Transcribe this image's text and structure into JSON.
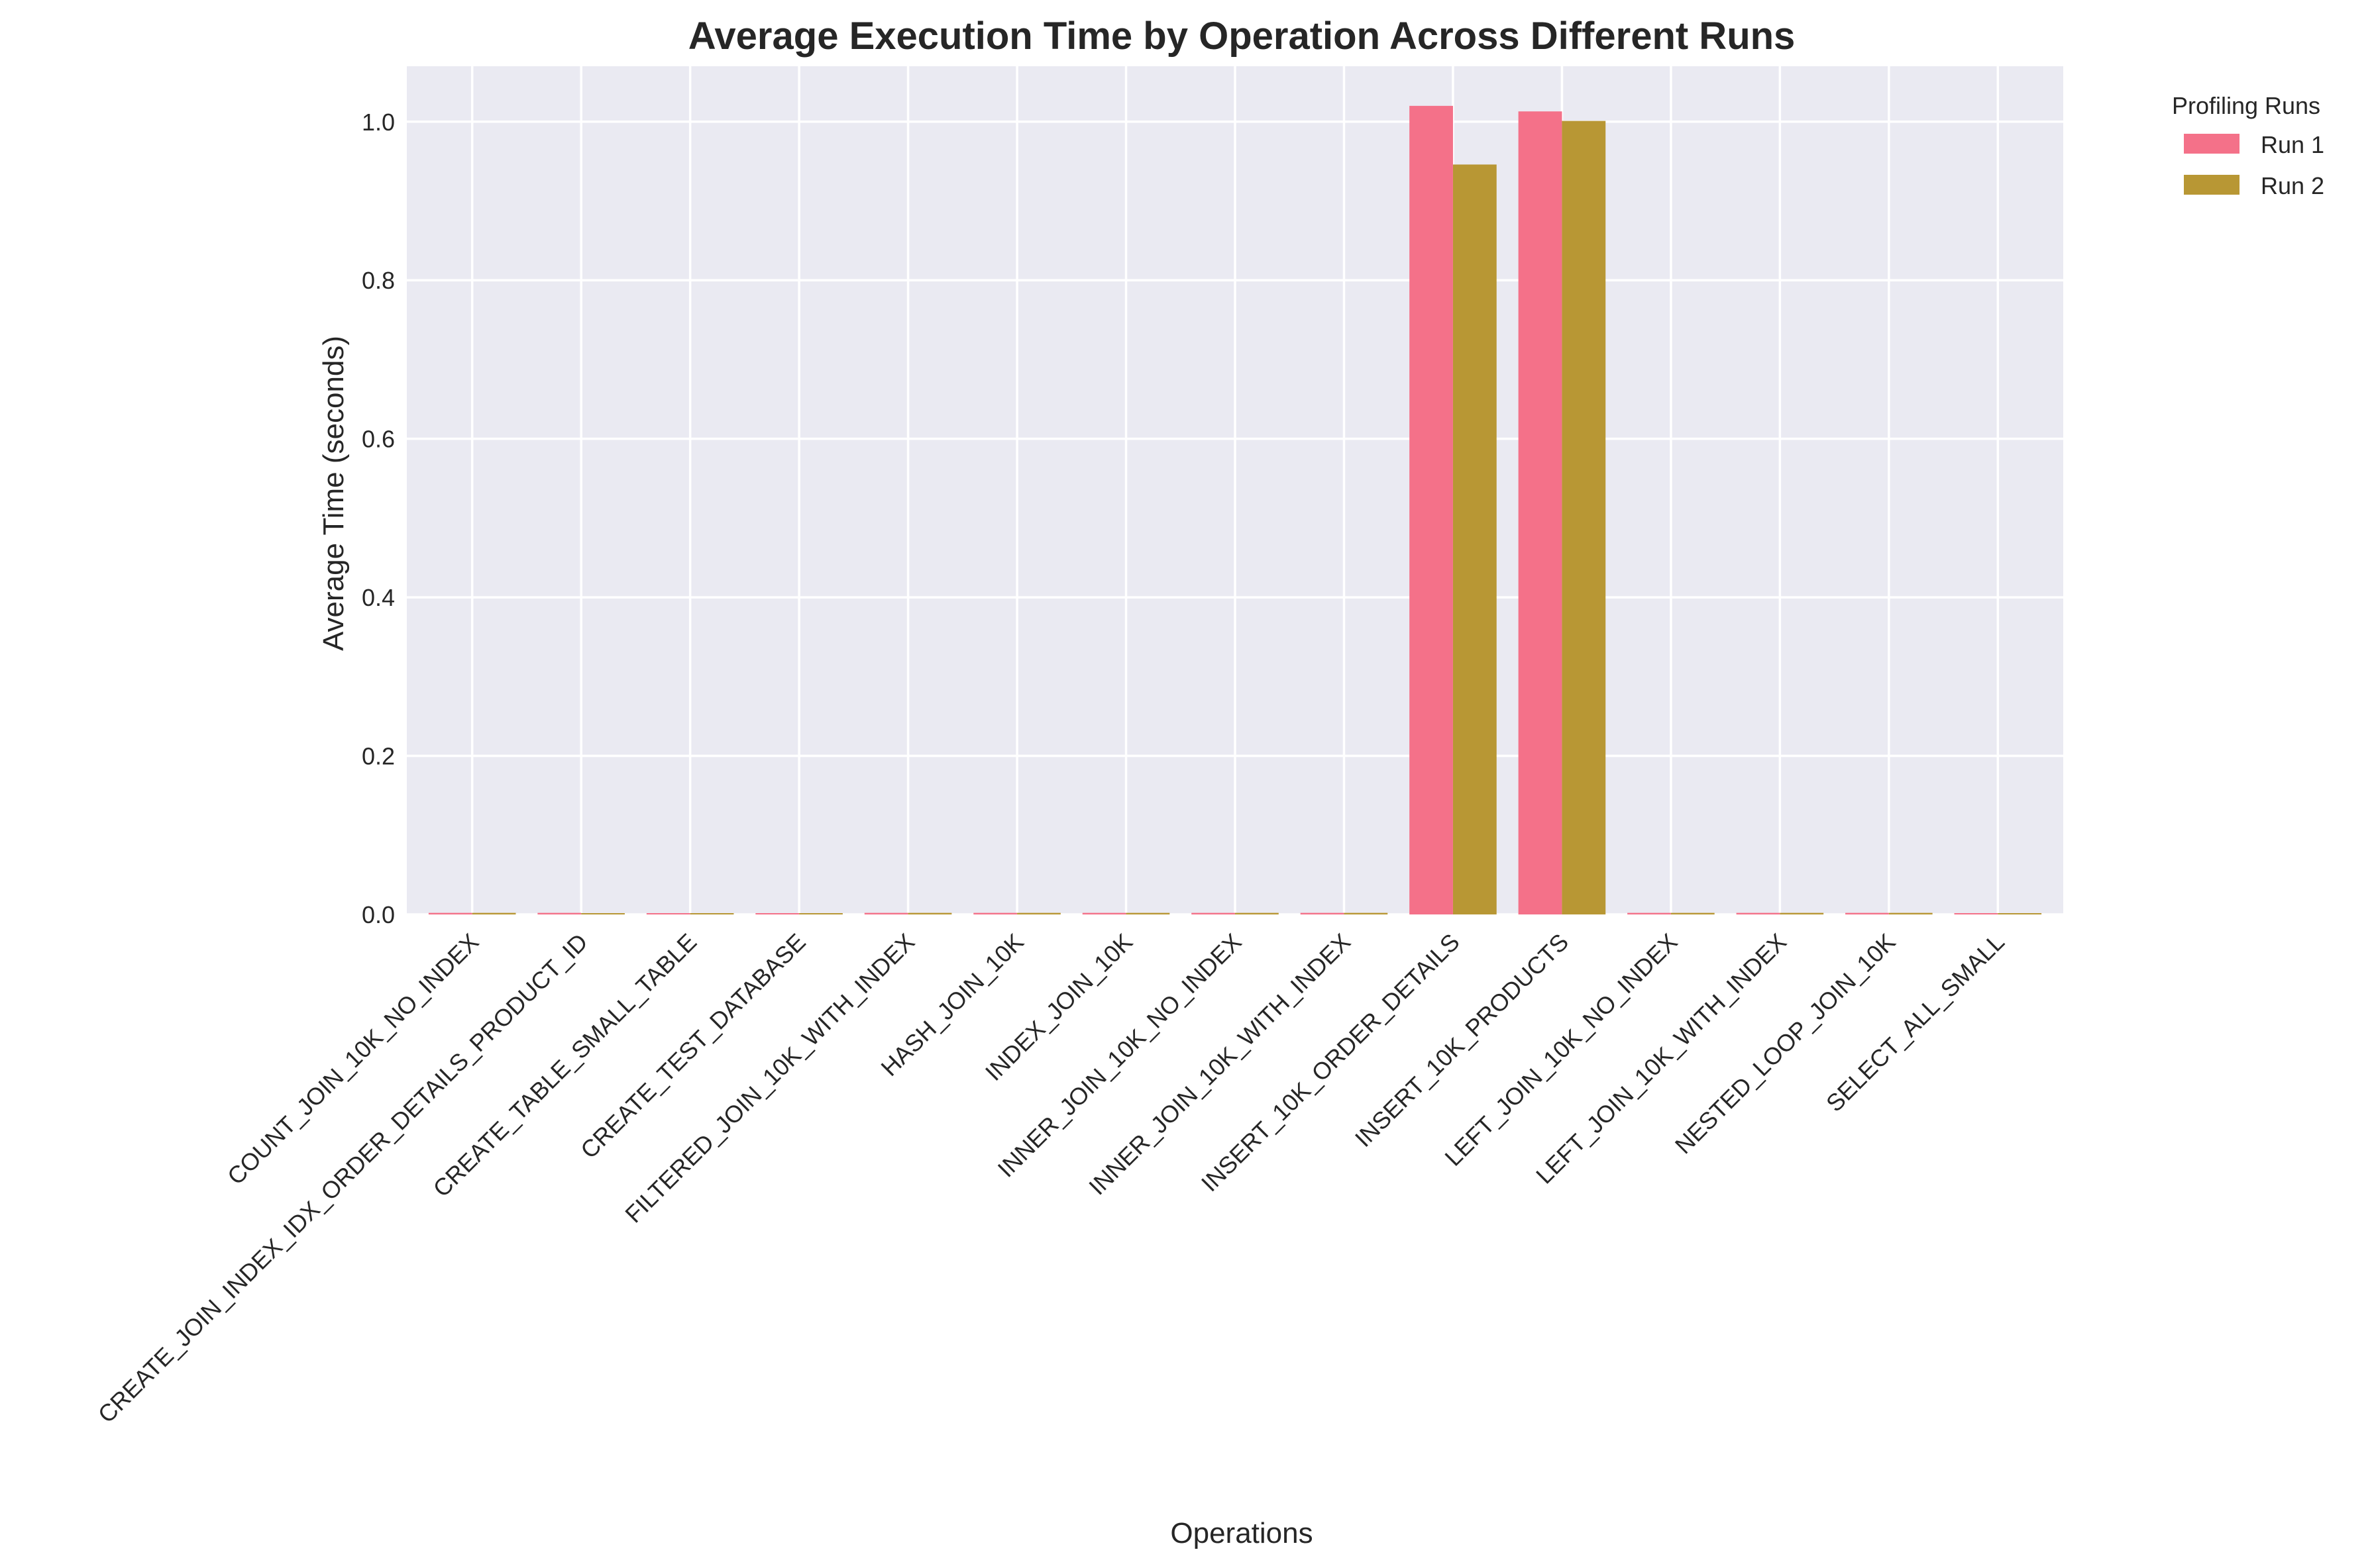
{
  "chart_data": {
    "type": "bar",
    "title": "Average Execution Time by Operation Across Different Runs",
    "xlabel": "Operations",
    "ylabel": "Average Time (seconds)",
    "ylim": [
      0,
      1.07
    ],
    "yticks": [
      0.0,
      0.2,
      0.4,
      0.6,
      0.8,
      1.0
    ],
    "ytick_labels": [
      "0.0",
      "0.2",
      "0.4",
      "0.6",
      "0.8",
      "1.0"
    ],
    "grid": true,
    "legend": {
      "title": "Profiling Runs",
      "placement": "outside-top-right"
    },
    "categories": [
      "COUNT_JOIN_10K_NO_INDEX",
      "CREATE_JOIN_INDEX_IDX_ORDER_DETAILS_PRODUCT_ID",
      "CREATE_TABLE_SMALL_TABLE",
      "CREATE_TEST_DATABASE",
      "FILTERED_JOIN_10K_WITH_INDEX",
      "HASH_JOIN_10K",
      "INDEX_JOIN_10K",
      "INNER_JOIN_10K_NO_INDEX",
      "INNER_JOIN_10K_WITH_INDEX",
      "INSERT_10K_ORDER_DETAILS",
      "INSERT_10K_PRODUCTS",
      "LEFT_JOIN_10K_NO_INDEX",
      "LEFT_JOIN_10K_WITH_INDEX",
      "NESTED_LOOP_JOIN_10K",
      "SELECT_ALL_SMALL"
    ],
    "series": [
      {
        "name": "Run 1",
        "color": "#f47189",
        "values": [
          0.002,
          0.002,
          0.001,
          0.001,
          0.002,
          0.002,
          0.002,
          0.002,
          0.002,
          1.02,
          1.013,
          0.002,
          0.002,
          0.002,
          0.001
        ]
      },
      {
        "name": "Run 2",
        "color": "#b89734",
        "values": [
          0.002,
          0.001,
          0.001,
          0.001,
          0.002,
          0.002,
          0.002,
          0.002,
          0.002,
          0.946,
          1.001,
          0.002,
          0.002,
          0.002,
          0.001
        ]
      }
    ],
    "colors": {
      "plot_background": "#eaeaf2",
      "grid": "#ffffff",
      "text": "#262626"
    }
  }
}
